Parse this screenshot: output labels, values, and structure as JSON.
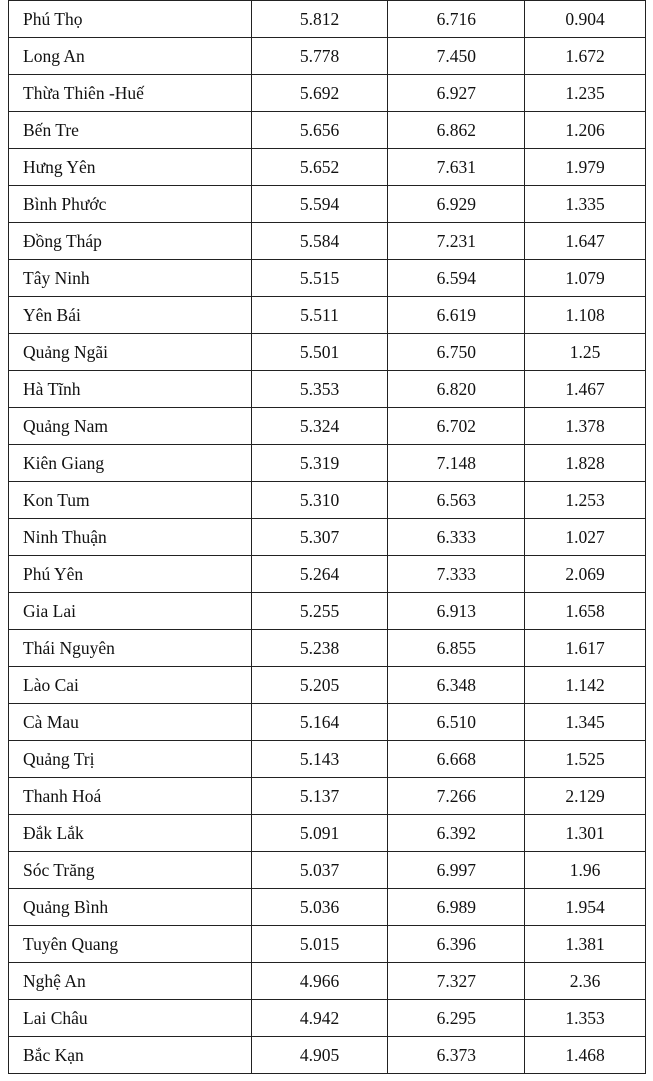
{
  "table": {
    "rows": [
      [
        "Phú Thọ",
        "5.812",
        "6.716",
        "0.904"
      ],
      [
        "Long An",
        "5.778",
        "7.450",
        "1.672"
      ],
      [
        "Thừa Thiên -Huế",
        "5.692",
        "6.927",
        "1.235"
      ],
      [
        "Bến Tre",
        "5.656",
        "6.862",
        "1.206"
      ],
      [
        "Hưng Yên",
        "5.652",
        "7.631",
        "1.979"
      ],
      [
        "Bình Phước",
        "5.594",
        "6.929",
        "1.335"
      ],
      [
        "Đồng Tháp",
        "5.584",
        "7.231",
        "1.647"
      ],
      [
        "Tây Ninh",
        "5.515",
        "6.594",
        "1.079"
      ],
      [
        "Yên Bái",
        "5.511",
        "6.619",
        "1.108"
      ],
      [
        "Quảng Ngãi",
        "5.501",
        "6.750",
        "1.25"
      ],
      [
        "Hà Tĩnh",
        "5.353",
        "6.820",
        "1.467"
      ],
      [
        "Quảng Nam",
        "5.324",
        "6.702",
        "1.378"
      ],
      [
        "Kiên Giang",
        "5.319",
        "7.148",
        "1.828"
      ],
      [
        "Kon Tum",
        "5.310",
        "6.563",
        "1.253"
      ],
      [
        "Ninh Thuận",
        "5.307",
        "6.333",
        "1.027"
      ],
      [
        "Phú Yên",
        "5.264",
        "7.333",
        "2.069"
      ],
      [
        "Gia Lai",
        "5.255",
        "6.913",
        "1.658"
      ],
      [
        "Thái Nguyên",
        "5.238",
        "6.855",
        "1.617"
      ],
      [
        "Lào Cai",
        "5.205",
        "6.348",
        "1.142"
      ],
      [
        "Cà Mau",
        "5.164",
        "6.510",
        "1.345"
      ],
      [
        "Quảng Trị",
        "5.143",
        "6.668",
        "1.525"
      ],
      [
        "Thanh Hoá",
        "5.137",
        "7.266",
        "2.129"
      ],
      [
        "Đắk Lắk",
        "5.091",
        "6.392",
        "1.301"
      ],
      [
        "Sóc Trăng",
        "5.037",
        "6.997",
        "1.96"
      ],
      [
        "Quảng Bình",
        "5.036",
        "6.989",
        "1.954"
      ],
      [
        "Tuyên Quang",
        "5.015",
        "6.396",
        "1.381"
      ],
      [
        "Nghệ An",
        "4.966",
        "7.327",
        "2.36"
      ],
      [
        "Lai Châu",
        "4.942",
        "6.295",
        "1.353"
      ],
      [
        "Bắc Kạn",
        "4.905",
        "6.373",
        "1.468"
      ]
    ]
  }
}
